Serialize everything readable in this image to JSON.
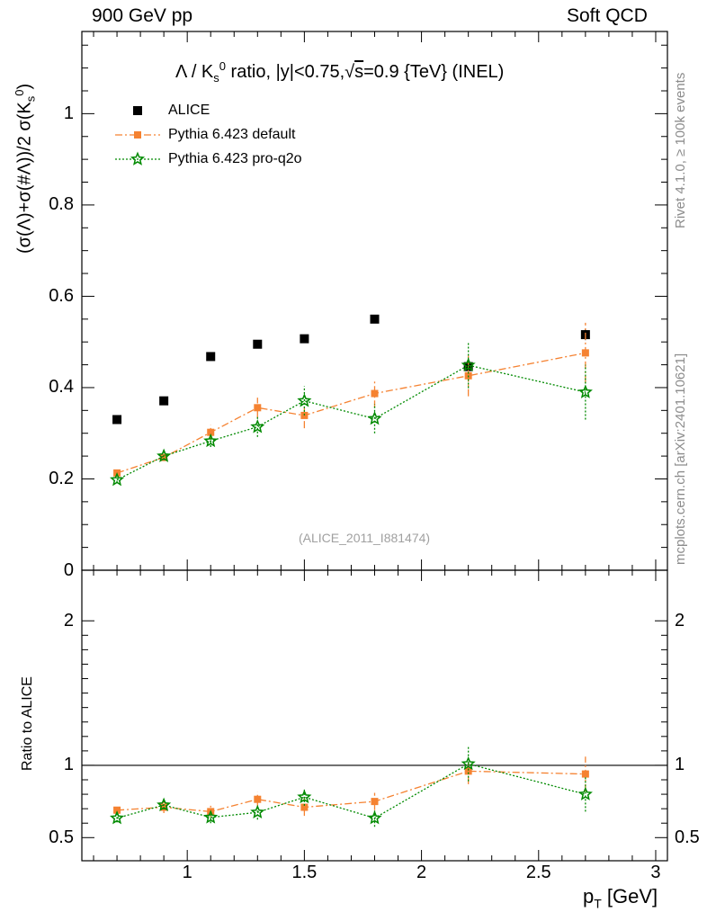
{
  "header": {
    "left": "900 GeV pp",
    "right": "Soft QCD"
  },
  "side_labels": {
    "rivet": "Rivet 4.1.0, ≥ 100k events",
    "mcplots": "mcplots.cern.ch [arXiv:2401.10621]"
  },
  "watermark": "(ALICE_2011_I881474)",
  "chart_data": [
    {
      "type": "scatter",
      "panel": "main",
      "title": "Λ / K_s^0 ratio, |y|<0.75, √s=0.9 {TeV} (INEL)",
      "ylabel": "(σ(Λ)+σ(#Λ))/2 σ(K_s^0)",
      "xlim": [
        0.55,
        3.05
      ],
      "ylim": [
        0,
        1.18
      ],
      "yticks": [
        0,
        0.2,
        0.4,
        0.6,
        0.8,
        1
      ],
      "ytick_labels": [
        "0",
        "0.2",
        "0.4",
        "0.6",
        "0.8",
        "1"
      ],
      "legend_position": "top-left",
      "series": [
        {
          "name": "ALICE",
          "color": "#000000",
          "marker": "square",
          "x": [
            0.7,
            0.9,
            1.1,
            1.3,
            1.5,
            1.8,
            2.2,
            2.7
          ],
          "y": [
            0.33,
            0.371,
            0.468,
            0.495,
            0.507,
            0.55,
            0.446,
            0.516
          ],
          "err": [
            0.008,
            0.008,
            0.008,
            0.008,
            0.009,
            0.009,
            0.01,
            0.012
          ]
        },
        {
          "name": "Pythia 6.423 default",
          "color": "#f58231",
          "marker": "square",
          "line": "dashdot",
          "x": [
            0.7,
            0.9,
            1.1,
            1.3,
            1.5,
            1.8,
            2.2,
            2.7
          ],
          "y": [
            0.213,
            0.247,
            0.302,
            0.356,
            0.339,
            0.387,
            0.426,
            0.476
          ],
          "err": [
            0.006,
            0.008,
            0.016,
            0.022,
            0.028,
            0.031,
            0.045,
            0.066
          ]
        },
        {
          "name": "Pythia 6.423 pro-q2o",
          "color": "#008a00",
          "marker": "star",
          "line": "dotted",
          "x": [
            0.7,
            0.9,
            1.1,
            1.3,
            1.5,
            1.8,
            2.2,
            2.7
          ],
          "y": [
            0.198,
            0.25,
            0.283,
            0.314,
            0.371,
            0.332,
            0.449,
            0.39
          ],
          "err": [
            0.006,
            0.009,
            0.013,
            0.022,
            0.032,
            0.032,
            0.05,
            0.06
          ]
        }
      ]
    },
    {
      "type": "scatter",
      "panel": "ratio",
      "ylabel": "Ratio to ALICE",
      "xlabel": "p_T [GeV]",
      "xlim": [
        0.55,
        3.05
      ],
      "ylim": [
        0.34,
        2.35
      ],
      "xticks": [
        1,
        1.5,
        2,
        2.5,
        3
      ],
      "xtick_labels": [
        "1",
        "1.5",
        "2",
        "2.5",
        "3"
      ],
      "yticks": [
        0.5,
        1,
        2
      ],
      "ytick_labels": [
        "0.5",
        "1",
        "2"
      ],
      "reference_line": 1,
      "series": [
        {
          "name": "Pythia 6.423 default",
          "color": "#f58231",
          "marker": "square",
          "line": "dashdot",
          "x": [
            0.7,
            0.9,
            1.1,
            1.3,
            1.5,
            1.8,
            2.2,
            2.7
          ],
          "y": [
            0.69,
            0.71,
            0.68,
            0.765,
            0.71,
            0.75,
            0.96,
            0.94
          ],
          "err": [
            0.03,
            0.04,
            0.04,
            0.05,
            0.06,
            0.06,
            0.09,
            0.12
          ]
        },
        {
          "name": "Pythia 6.423 pro-q2o",
          "color": "#008a00",
          "marker": "star",
          "line": "dotted",
          "x": [
            0.7,
            0.9,
            1.1,
            1.3,
            1.5,
            1.8,
            2.2,
            2.7
          ],
          "y": [
            0.635,
            0.725,
            0.64,
            0.675,
            0.78,
            0.635,
            1.01,
            0.8
          ],
          "err": [
            0.03,
            0.03,
            0.04,
            0.05,
            0.06,
            0.06,
            0.12,
            0.12
          ]
        }
      ]
    }
  ]
}
